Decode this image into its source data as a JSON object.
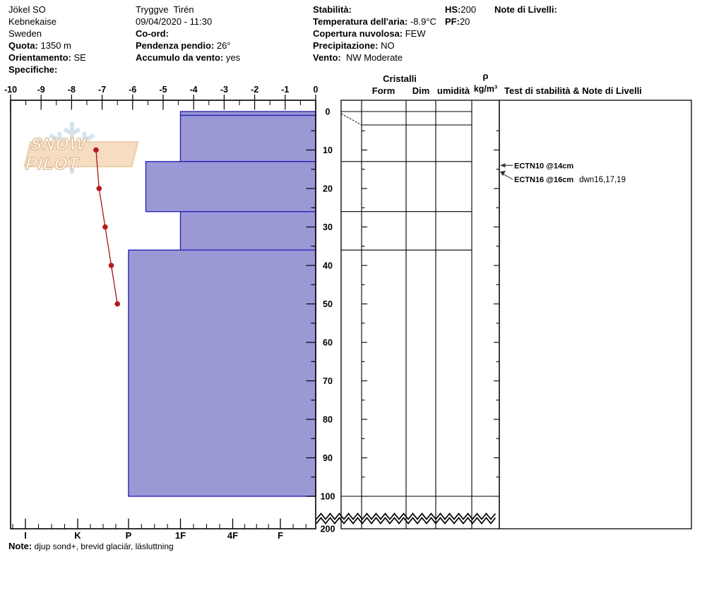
{
  "header": {
    "site_name": "Jökel SO",
    "region": "Kebnekaise",
    "country": "Sweden",
    "elevation": {
      "label": "Quota:",
      "value": " 1350 m"
    },
    "aspect": {
      "label": "Orientamento:",
      "value": " SE"
    },
    "specifics": {
      "label": "Specifiche:",
      "value": ""
    },
    "observer": "Tryggve  Tirén",
    "datetime": "09/04/2020 - 11:30",
    "coord": {
      "label": "Co-ord:",
      "value": ""
    },
    "slope": {
      "label": "Pendenza pendio:",
      "value": " 26°"
    },
    "wind_loading": {
      "label": "Accumulo da vento:",
      "value": " yes"
    },
    "stability": {
      "label": "Stabilità:",
      "value": ""
    },
    "air_temp": {
      "label": "Temperatura dell'aria:",
      "value": " -8.9°C"
    },
    "sky_cover": {
      "label": "Copertura nuvolosa:",
      "value": " FEW"
    },
    "precipitation": {
      "label": "Precipitazione:",
      "value": " NO"
    },
    "wind": {
      "label": "Vento:",
      "value": "  NW Moderate"
    },
    "hs": {
      "label": "HS:",
      "value": "200"
    },
    "pf": {
      "label": "PF:",
      "value": "20"
    },
    "level_notes": {
      "label": "Note di Livelli:",
      "value": ""
    }
  },
  "logo": {
    "name": "SNOW PILOT",
    "snowflake_icon": "❄"
  },
  "chart_data": {
    "type": "snow-profile",
    "temperature_axis": {
      "unit": "°C",
      "min": -10,
      "max": 0,
      "tick_labels": [
        "-10",
        "-9",
        "-8",
        "-7",
        "-6",
        "-5",
        "-4",
        "-3",
        "-2",
        "-1",
        "0"
      ]
    },
    "depth_axis": {
      "unit": "cm",
      "break_after_cm": 100,
      "total_depth_cm": 200,
      "tick_labels": [
        "0",
        "10",
        "20",
        "30",
        "40",
        "50",
        "60",
        "70",
        "80",
        "90",
        "100"
      ],
      "break_label": "200"
    },
    "hardness_axis": {
      "categories": [
        "I",
        "K",
        "P",
        "1F",
        "4F",
        "F"
      ]
    },
    "layers": [
      {
        "top_cm": 0,
        "bottom_cm": 1,
        "hardness": "1F"
      },
      {
        "top_cm": 1,
        "bottom_cm": 13,
        "hardness": "1F"
      },
      {
        "top_cm": 13,
        "bottom_cm": 26,
        "hardness": "P-"
      },
      {
        "top_cm": 26,
        "bottom_cm": 36,
        "hardness": "1F"
      },
      {
        "top_cm": 36,
        "bottom_cm": 100,
        "hardness": "P"
      }
    ],
    "temperature_series": [
      {
        "temp_c": -7.2,
        "depth_cm": 10
      },
      {
        "temp_c": -7.1,
        "depth_cm": 20
      },
      {
        "temp_c": -6.9,
        "depth_cm": 30
      },
      {
        "temp_c": -6.7,
        "depth_cm": 40
      },
      {
        "temp_c": -6.5,
        "depth_cm": 50
      }
    ],
    "colors": {
      "layer_fill": "#9a99d6",
      "layer_border": "#2b24b4",
      "temp_line": "#a51616",
      "temp_point": "#b31b1b"
    }
  },
  "right_panel": {
    "group_header": "Cristalli",
    "columns": {
      "form": "Form",
      "dim": "Dim",
      "humidity": "umidità",
      "density_symbol": "ρ",
      "density_units": "kg/m³"
    },
    "tests_header": "Test di stabilità & Note di Livelli",
    "row_boundaries_cm": [
      0,
      1,
      13,
      26,
      36,
      100
    ],
    "annotations": [
      {
        "label": "ECTN10 @14cm",
        "suffix": "",
        "depth_cm": 14
      },
      {
        "label": "ECTN16 @16cm",
        "suffix": "dwn16,17,19",
        "depth_cm": 16
      }
    ]
  },
  "footer": {
    "note_label": "Note:",
    "note_text": " djup sond+, brevid glaciär, läsluttning"
  }
}
